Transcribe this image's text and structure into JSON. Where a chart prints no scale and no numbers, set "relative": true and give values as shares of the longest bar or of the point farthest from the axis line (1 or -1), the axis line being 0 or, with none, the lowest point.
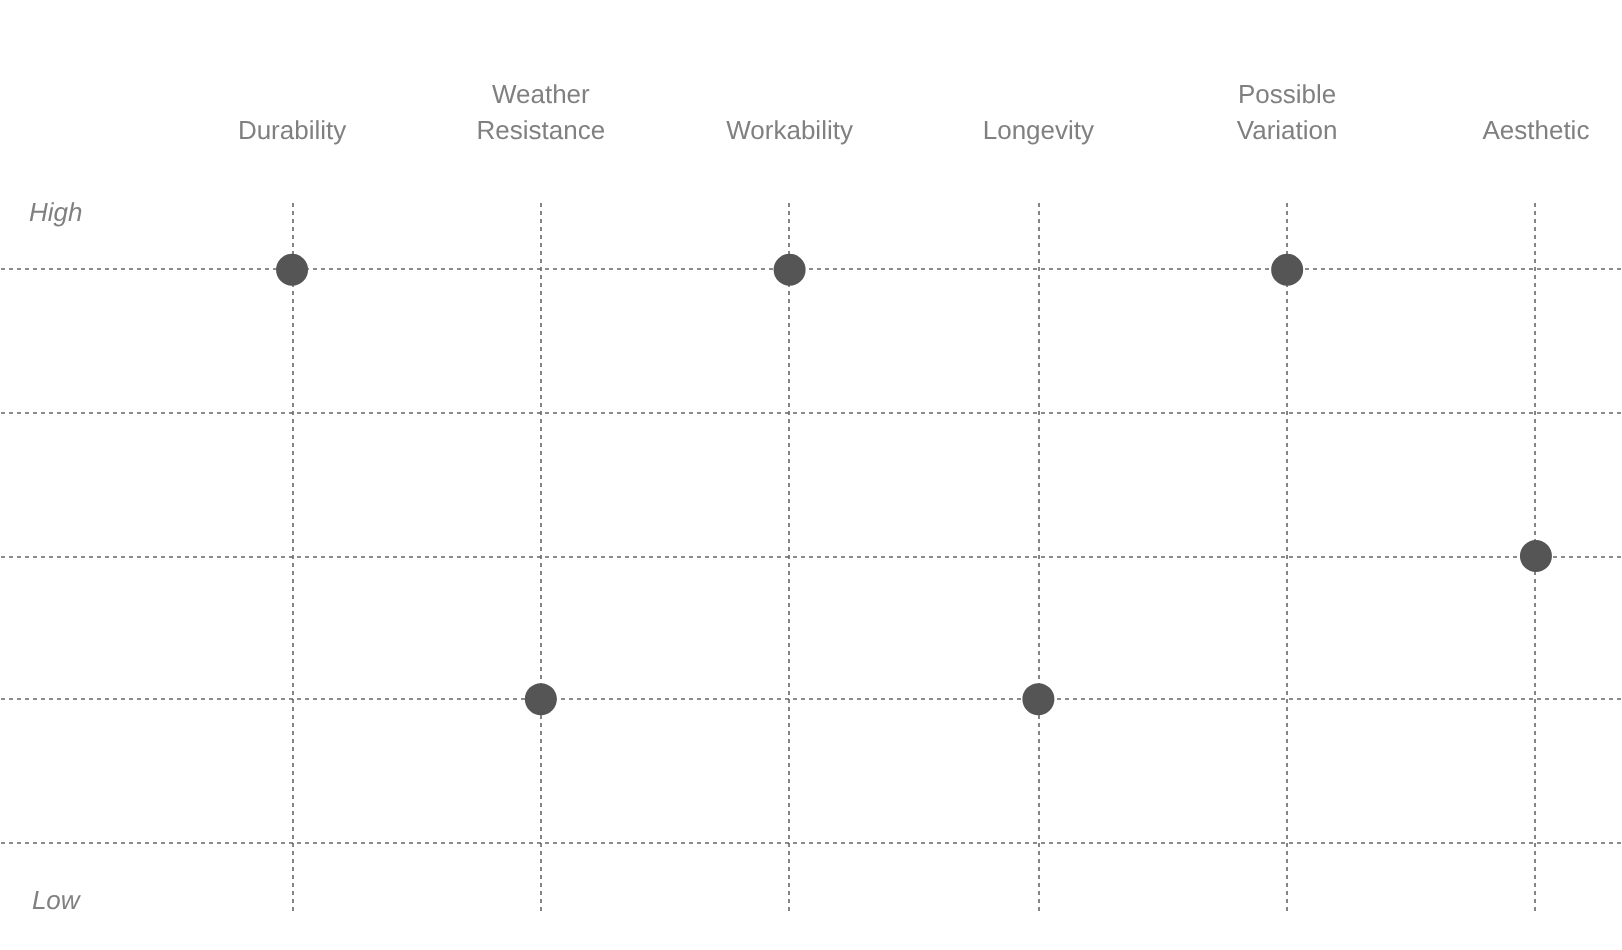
{
  "chart_data": {
    "type": "scatter",
    "categories": [
      "Durability",
      "Weather Resistance",
      "Workability",
      "Longevity",
      "Possible Variation",
      "Aesthetic"
    ],
    "series": [
      {
        "color": "#555555",
        "values": [
          1,
          0.25,
          1,
          0.25,
          1,
          0.5
        ]
      }
    ],
    "relative": true,
    "annotations": [
      "High",
      "Low"
    ],
    "grid": true,
    "marker": "circle"
  }
}
